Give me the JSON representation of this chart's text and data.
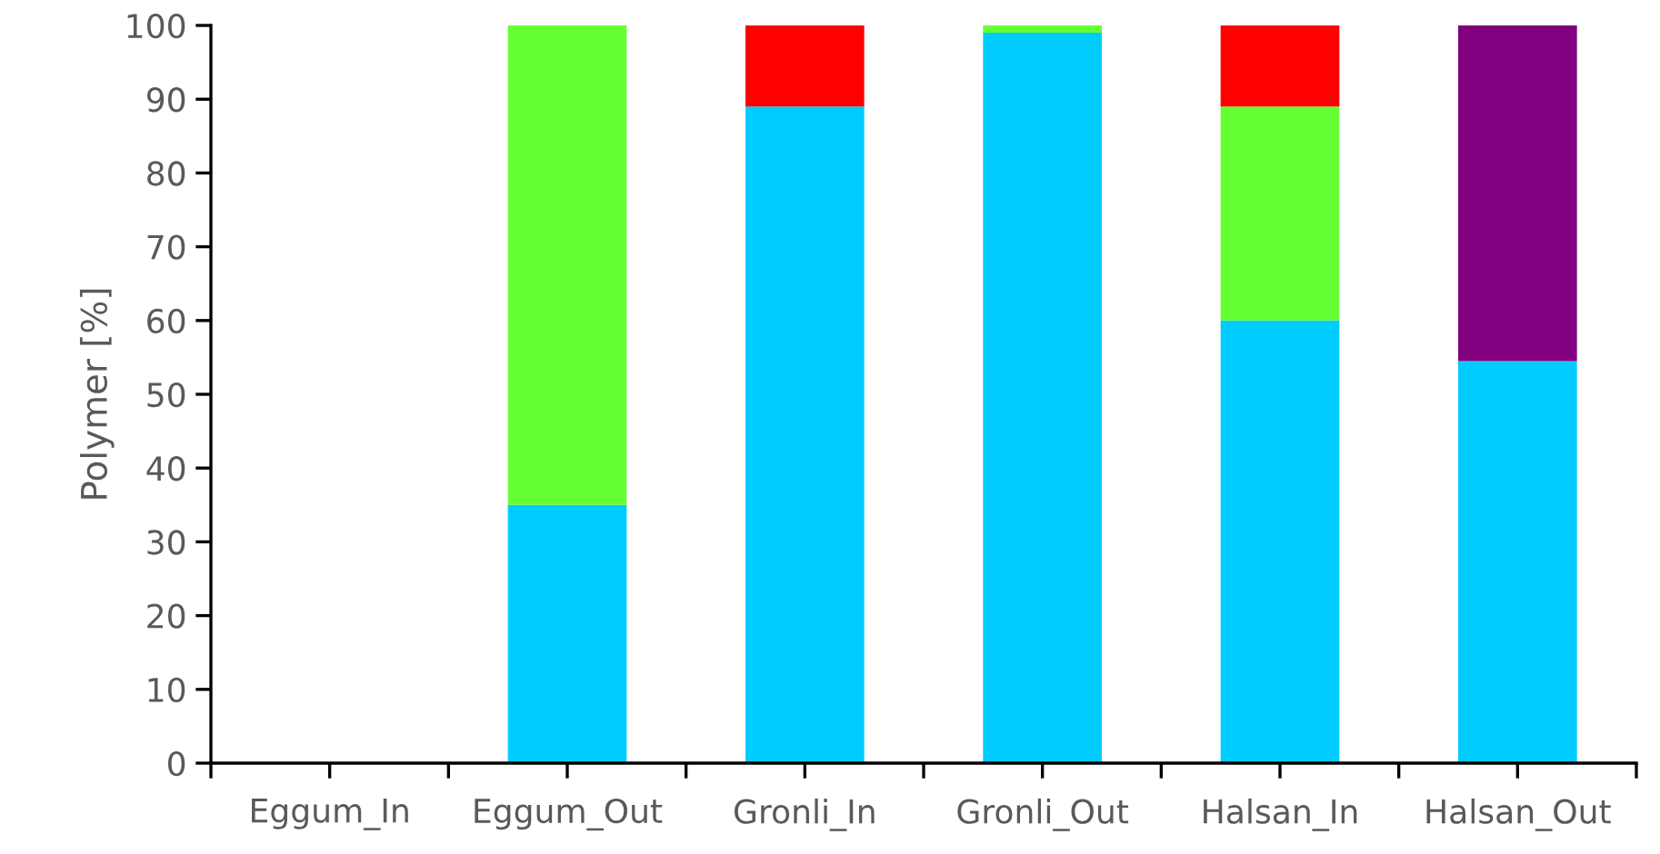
{
  "chart_data": {
    "type": "bar",
    "stacked": true,
    "ylabel": "Polymer [%]",
    "categories": [
      "Eggum_In",
      "Eggum_Out",
      "Gronli_In",
      "Gronli_Out",
      "Halsan_In",
      "Halsan_Out"
    ],
    "series": [
      {
        "color": "#00ccff",
        "values": [
          0,
          35,
          89,
          99,
          60,
          54.5
        ]
      },
      {
        "color": "#66ff33",
        "values": [
          0,
          65,
          0,
          1,
          29,
          0
        ]
      },
      {
        "color": "#ff0000",
        "values": [
          0,
          0,
          11,
          0,
          11,
          0
        ]
      },
      {
        "color": "#800080",
        "values": [
          0,
          0,
          0,
          0,
          0,
          45.5
        ]
      }
    ],
    "ylim": [
      0,
      100
    ],
    "yticks": [
      0,
      10,
      20,
      30,
      40,
      50,
      60,
      70,
      80,
      90,
      100
    ],
    "grid": false
  }
}
